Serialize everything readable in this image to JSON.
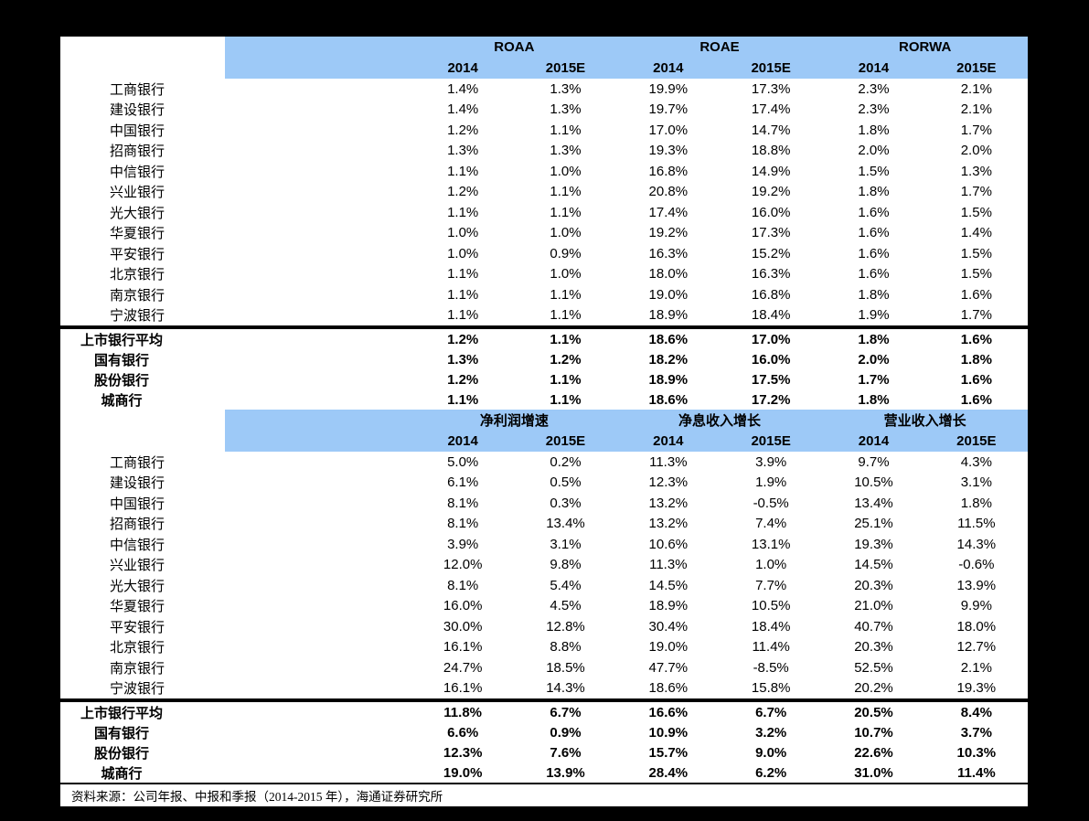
{
  "colors": {
    "page_background": "#000000",
    "sheet_background": "#ffffff",
    "header_blue": "#9dc9f7",
    "text": "#000000"
  },
  "tables": [
    {
      "groups": [
        {
          "label": "ROAA"
        },
        {
          "label": "ROAE"
        },
        {
          "label": "RORWA"
        }
      ],
      "year_headers": [
        "2014",
        "2015E",
        "2014",
        "2015E",
        "2014",
        "2015E"
      ],
      "rows": [
        {
          "label": "工商银行",
          "values": [
            "1.4%",
            "1.3%",
            "19.9%",
            "17.3%",
            "2.3%",
            "2.1%"
          ]
        },
        {
          "label": "建设银行",
          "values": [
            "1.4%",
            "1.3%",
            "19.7%",
            "17.4%",
            "2.3%",
            "2.1%"
          ]
        },
        {
          "label": "中国银行",
          "values": [
            "1.2%",
            "1.1%",
            "17.0%",
            "14.7%",
            "1.8%",
            "1.7%"
          ]
        },
        {
          "label": "招商银行",
          "values": [
            "1.3%",
            "1.3%",
            "19.3%",
            "18.8%",
            "2.0%",
            "2.0%"
          ]
        },
        {
          "label": "中信银行",
          "values": [
            "1.1%",
            "1.0%",
            "16.8%",
            "14.9%",
            "1.5%",
            "1.3%"
          ]
        },
        {
          "label": "兴业银行",
          "values": [
            "1.2%",
            "1.1%",
            "20.8%",
            "19.2%",
            "1.8%",
            "1.7%"
          ]
        },
        {
          "label": "光大银行",
          "values": [
            "1.1%",
            "1.1%",
            "17.4%",
            "16.0%",
            "1.6%",
            "1.5%"
          ]
        },
        {
          "label": "华夏银行",
          "values": [
            "1.0%",
            "1.0%",
            "19.2%",
            "17.3%",
            "1.6%",
            "1.4%"
          ]
        },
        {
          "label": "平安银行",
          "values": [
            "1.0%",
            "0.9%",
            "16.3%",
            "15.2%",
            "1.6%",
            "1.5%"
          ]
        },
        {
          "label": "北京银行",
          "values": [
            "1.1%",
            "1.0%",
            "18.0%",
            "16.3%",
            "1.6%",
            "1.5%"
          ]
        },
        {
          "label": "南京银行",
          "values": [
            "1.1%",
            "1.1%",
            "19.0%",
            "16.8%",
            "1.8%",
            "1.6%"
          ]
        },
        {
          "label": "宁波银行",
          "values": [
            "1.1%",
            "1.1%",
            "18.9%",
            "18.4%",
            "1.9%",
            "1.7%"
          ]
        }
      ],
      "summary_rows": [
        {
          "label": "上市银行平均",
          "values": [
            "1.2%",
            "1.1%",
            "18.6%",
            "17.0%",
            "1.8%",
            "1.6%"
          ]
        },
        {
          "label": "国有银行",
          "values": [
            "1.3%",
            "1.2%",
            "18.2%",
            "16.0%",
            "2.0%",
            "1.8%"
          ]
        },
        {
          "label": "股份银行",
          "values": [
            "1.2%",
            "1.1%",
            "18.9%",
            "17.5%",
            "1.7%",
            "1.6%"
          ]
        },
        {
          "label": "城商行",
          "values": [
            "1.1%",
            "1.1%",
            "18.6%",
            "17.2%",
            "1.8%",
            "1.6%"
          ]
        }
      ]
    },
    {
      "groups": [
        {
          "label": "净利润增速"
        },
        {
          "label": "净息收入增长"
        },
        {
          "label": "营业收入增长"
        }
      ],
      "year_headers": [
        "2014",
        "2015E",
        "2014",
        "2015E",
        "2014",
        "2015E"
      ],
      "rows": [
        {
          "label": "工商银行",
          "values": [
            "5.0%",
            "0.2%",
            "11.3%",
            "3.9%",
            "9.7%",
            "4.3%"
          ]
        },
        {
          "label": "建设银行",
          "values": [
            "6.1%",
            "0.5%",
            "12.3%",
            "1.9%",
            "10.5%",
            "3.1%"
          ]
        },
        {
          "label": "中国银行",
          "values": [
            "8.1%",
            "0.3%",
            "13.2%",
            "-0.5%",
            "13.4%",
            "1.8%"
          ]
        },
        {
          "label": "招商银行",
          "values": [
            "8.1%",
            "13.4%",
            "13.2%",
            "7.4%",
            "25.1%",
            "11.5%"
          ]
        },
        {
          "label": "中信银行",
          "values": [
            "3.9%",
            "3.1%",
            "10.6%",
            "13.1%",
            "19.3%",
            "14.3%"
          ]
        },
        {
          "label": "兴业银行",
          "values": [
            "12.0%",
            "9.8%",
            "11.3%",
            "1.0%",
            "14.5%",
            "-0.6%"
          ]
        },
        {
          "label": "光大银行",
          "values": [
            "8.1%",
            "5.4%",
            "14.5%",
            "7.7%",
            "20.3%",
            "13.9%"
          ]
        },
        {
          "label": "华夏银行",
          "values": [
            "16.0%",
            "4.5%",
            "18.9%",
            "10.5%",
            "21.0%",
            "9.9%"
          ]
        },
        {
          "label": "平安银行",
          "values": [
            "30.0%",
            "12.8%",
            "30.4%",
            "18.4%",
            "40.7%",
            "18.0%"
          ]
        },
        {
          "label": "北京银行",
          "values": [
            "16.1%",
            "8.8%",
            "19.0%",
            "11.4%",
            "20.3%",
            "12.7%"
          ]
        },
        {
          "label": "南京银行",
          "values": [
            "24.7%",
            "18.5%",
            "47.7%",
            "-8.5%",
            "52.5%",
            "2.1%"
          ]
        },
        {
          "label": "宁波银行",
          "values": [
            "16.1%",
            "14.3%",
            "18.6%",
            "15.8%",
            "20.2%",
            "19.3%"
          ]
        }
      ],
      "summary_rows": [
        {
          "label": "上市银行平均",
          "values": [
            "11.8%",
            "6.7%",
            "16.6%",
            "6.7%",
            "20.5%",
            "8.4%"
          ]
        },
        {
          "label": "国有银行",
          "values": [
            "6.6%",
            "0.9%",
            "10.9%",
            "3.2%",
            "10.7%",
            "3.7%"
          ]
        },
        {
          "label": "股份银行",
          "values": [
            "12.3%",
            "7.6%",
            "15.7%",
            "9.0%",
            "22.6%",
            "10.3%"
          ]
        },
        {
          "label": "城商行",
          "values": [
            "19.0%",
            "13.9%",
            "28.4%",
            "6.2%",
            "31.0%",
            "11.4%"
          ]
        }
      ]
    }
  ],
  "footer": {
    "source_text": "资料来源：公司年报、中报和季报（2014-2015 年），海通证券研究所"
  }
}
